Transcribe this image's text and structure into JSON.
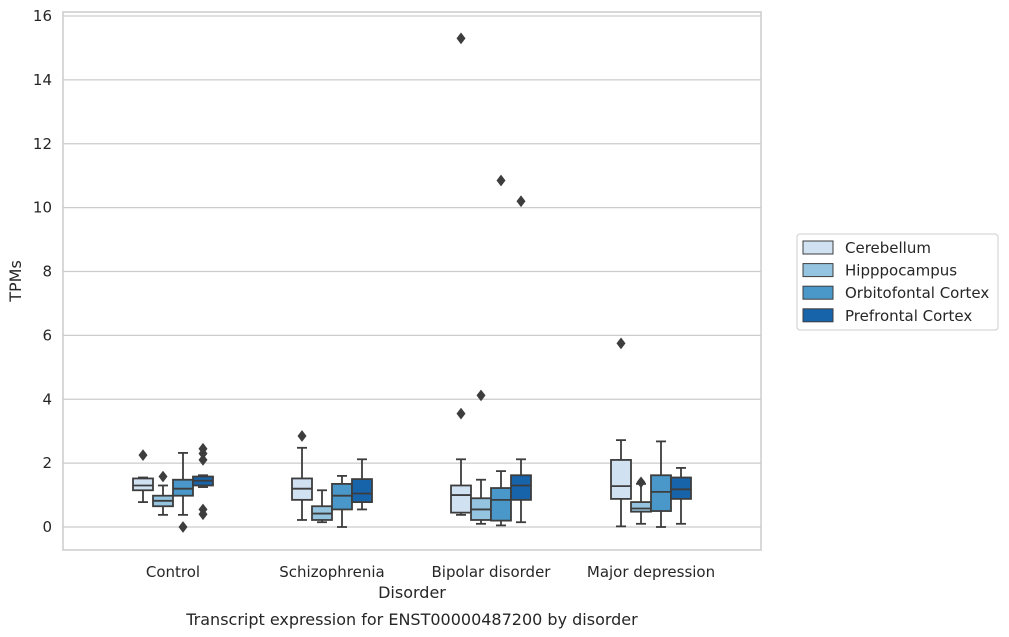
{
  "chart_data": {
    "type": "box",
    "caption": "Transcript expression for ENST00000487200 by disorder",
    "xlabel": "Disorder",
    "ylabel": "TPMs",
    "ylim": [
      -0.7,
      16.1
    ],
    "yticks": [
      0,
      2,
      4,
      6,
      8,
      10,
      12,
      14,
      16
    ],
    "grid": "horizontal",
    "legend": "right",
    "categories": [
      "Control",
      "Schizophrenia",
      "Bipolar disorder",
      "Major depression"
    ],
    "series": [
      {
        "name": "Cerebellum",
        "color": "#d0e1f2",
        "boxes": [
          {
            "whislo": 0.78,
            "q1": 1.15,
            "med": 1.3,
            "q3": 1.52,
            "whishi": 1.55,
            "fliers": [
              2.25
            ]
          },
          {
            "whislo": 0.22,
            "q1": 0.85,
            "med": 1.2,
            "q3": 1.52,
            "whishi": 2.48,
            "fliers": [
              2.85
            ]
          },
          {
            "whislo": 0.38,
            "q1": 0.45,
            "med": 1.0,
            "q3": 1.3,
            "whishi": 2.12,
            "fliers": [
              3.55,
              15.3
            ]
          },
          {
            "whislo": 0.02,
            "q1": 0.88,
            "med": 1.28,
            "q3": 2.1,
            "whishi": 2.72,
            "fliers": [
              5.75
            ]
          }
        ]
      },
      {
        "name": "Hipppocampus",
        "color": "#94c4df",
        "boxes": [
          {
            "whislo": 0.38,
            "q1": 0.65,
            "med": 0.82,
            "q3": 0.98,
            "whishi": 1.3,
            "fliers": [
              1.58
            ]
          },
          {
            "whislo": 0.15,
            "q1": 0.22,
            "med": 0.42,
            "q3": 0.65,
            "whishi": 1.15,
            "fliers": []
          },
          {
            "whislo": 0.1,
            "q1": 0.22,
            "med": 0.55,
            "q3": 0.9,
            "whishi": 1.48,
            "fliers": [
              4.12
            ]
          },
          {
            "whislo": 0.1,
            "q1": 0.48,
            "med": 0.58,
            "q3": 0.78,
            "whishi": 1.35,
            "fliers": [
              1.4
            ]
          }
        ]
      },
      {
        "name": "Orbitofontal Cortex",
        "color": "#4a98c9",
        "boxes": [
          {
            "whislo": 0.38,
            "q1": 0.98,
            "med": 1.2,
            "q3": 1.48,
            "whishi": 2.32,
            "fliers": [
              0.0
            ]
          },
          {
            "whislo": 0.0,
            "q1": 0.55,
            "med": 0.98,
            "q3": 1.35,
            "whishi": 1.6,
            "fliers": []
          },
          {
            "whislo": 0.05,
            "q1": 0.2,
            "med": 0.85,
            "q3": 1.22,
            "whishi": 1.75,
            "fliers": [
              10.85
            ]
          },
          {
            "whislo": 0.0,
            "q1": 0.5,
            "med": 1.1,
            "q3": 1.62,
            "whishi": 2.68,
            "fliers": []
          }
        ]
      },
      {
        "name": "Prefrontal Cortex",
        "color": "#1764ab",
        "boxes": [
          {
            "whislo": 1.25,
            "q1": 1.3,
            "med": 1.45,
            "q3": 1.58,
            "whishi": 1.62,
            "fliers": [
              2.45,
              2.3,
              2.1,
              0.55,
              0.4
            ]
          },
          {
            "whislo": 0.55,
            "q1": 0.78,
            "med": 1.05,
            "q3": 1.5,
            "whishi": 2.12,
            "fliers": []
          },
          {
            "whislo": 0.15,
            "q1": 0.85,
            "med": 1.3,
            "q3": 1.62,
            "whishi": 2.12,
            "fliers": [
              10.2
            ]
          },
          {
            "whislo": 0.1,
            "q1": 0.88,
            "med": 1.18,
            "q3": 1.55,
            "whishi": 1.85,
            "fliers": []
          }
        ]
      }
    ]
  }
}
